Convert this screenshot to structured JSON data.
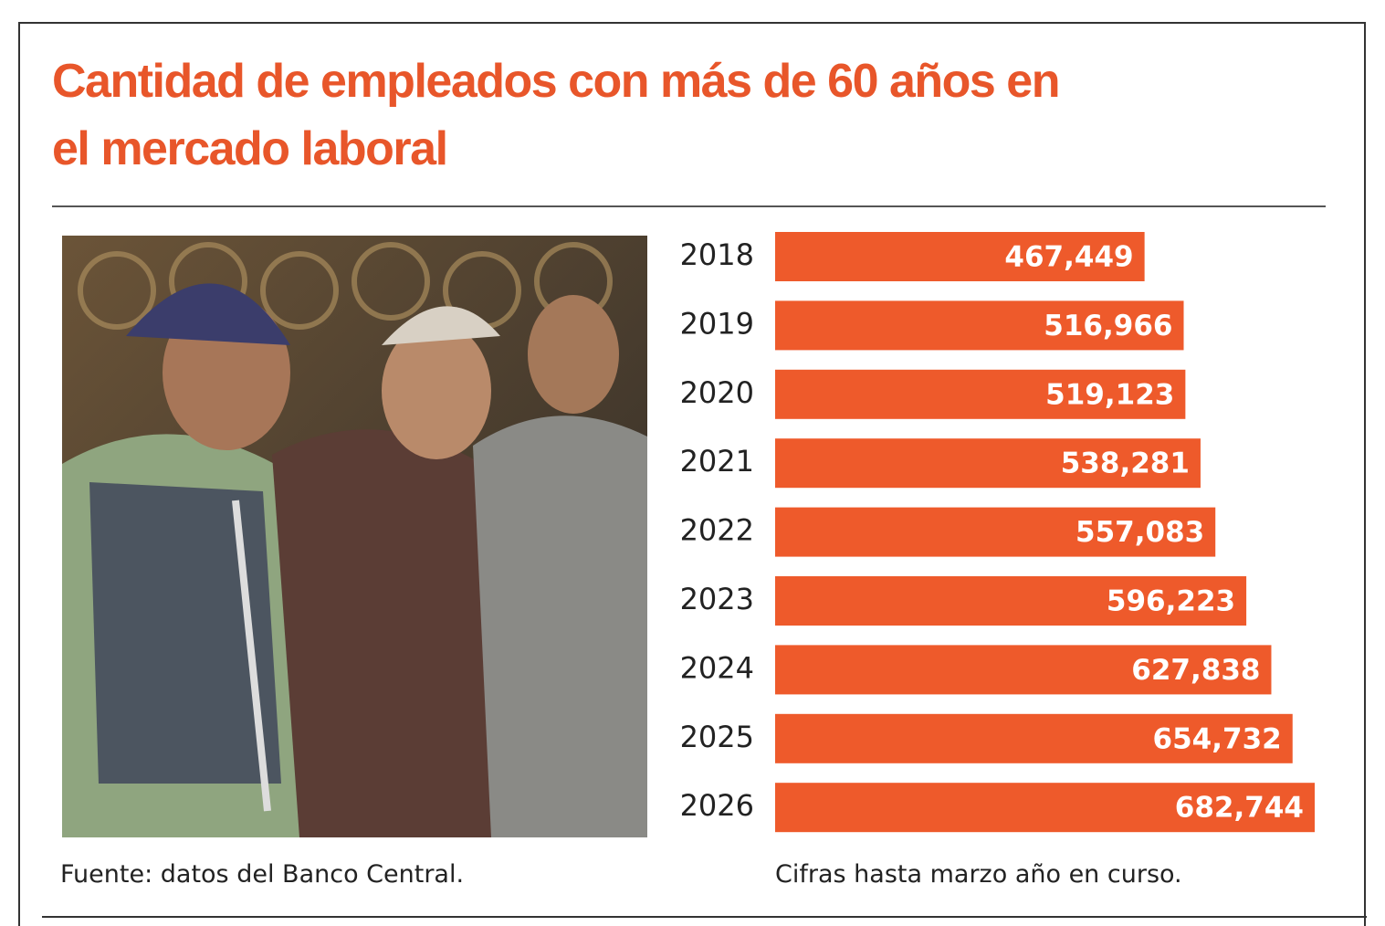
{
  "chart_data": {
    "type": "bar",
    "orientation": "horizontal",
    "title": "Cantidad de empleados con más de 60 años en el mercado laboral",
    "categories": [
      "2018",
      "2019",
      "2020",
      "2021",
      "2022",
      "2023",
      "2024",
      "2025",
      "2026"
    ],
    "values": [
      467449,
      516966,
      519123,
      538281,
      557083,
      596223,
      627838,
      654732,
      682744
    ],
    "value_labels": [
      "467,449",
      "516,966",
      "519,123",
      "538,281",
      "557,083",
      "596,223",
      "627,838",
      "654,732",
      "682,744"
    ],
    "color": "#ee5a2b",
    "source": "Fuente: datos del Banco Central.",
    "note": "Cifras hasta marzo año en curso."
  }
}
